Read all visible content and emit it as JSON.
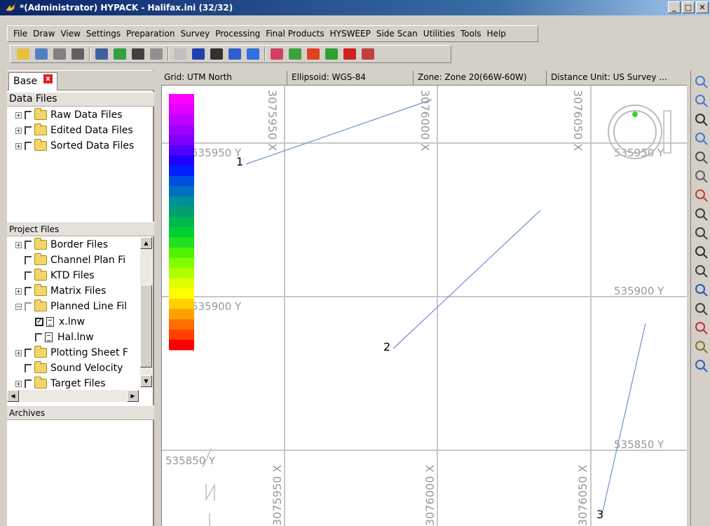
{
  "window": {
    "title": "*(Administrator) HYPACK - Halifax.ini (32/32)"
  },
  "menu": [
    "File",
    "Draw",
    "View",
    "Settings",
    "Preparation",
    "Survey",
    "Processing",
    "Final Products",
    "HYSWEEP",
    "Side Scan",
    "Utilities",
    "Tools",
    "Help"
  ],
  "toolbar_icons": [
    "open-folder-icon",
    "save-icon",
    "print-icon",
    "tools-icon",
    "planned-line-icon",
    "globe-icon",
    "satellite-icon",
    "boat-icon",
    "device-icon",
    "chart-icon",
    "book-icon",
    "zoom-date-icon",
    "wave-icon",
    "screen-icon",
    "window-icon",
    "terrain-icon",
    "map-icon",
    "color-map-icon",
    "grid-icon"
  ],
  "left_panel": {
    "base_tab": "Base",
    "data_files_header": "Data Files",
    "data_files": [
      "Raw Data Files",
      "Edited Data Files",
      "Sorted Data Files"
    ],
    "project_files_header": "Project Files",
    "project_files": [
      {
        "label": "Border Files",
        "expandable": true
      },
      {
        "label": "Channel Plan Fi",
        "expandable": false
      },
      {
        "label": "KTD Files",
        "expandable": false
      },
      {
        "label": "Matrix Files",
        "expandable": true
      },
      {
        "label": "Planned Line Fil",
        "expandable": true,
        "expanded": true
      },
      {
        "label": "x.lnw",
        "child": true,
        "checked": true
      },
      {
        "label": "Hal.lnw",
        "child": true,
        "checked": false
      },
      {
        "label": "Plotting Sheet F",
        "expandable": true
      },
      {
        "label": "Sound Velocity",
        "expandable": false
      },
      {
        "label": "Target Files",
        "expandable": true
      }
    ],
    "archives_header": "Archives"
  },
  "status": {
    "grid": "Grid: UTM North",
    "ellipsoid": "Ellipsoid: WGS-84",
    "zone": "Zone: Zone 20(66W-60W)",
    "distance": "Distance Unit: US Survey ..."
  },
  "map": {
    "grid_labels_x_top": [
      "3075950 X",
      "3076000 X",
      "3076050 X"
    ],
    "grid_labels_x_bottom": [
      "3075950 X",
      "3076000 X",
      "3076050 X"
    ],
    "grid_labels_y": [
      "535950 Y",
      "535900 Y",
      "535850 Y"
    ],
    "line_labels": [
      "1",
      "2",
      "3"
    ],
    "line_color": "#6d8fd6",
    "color_scale": [
      "#ff00ff",
      "#e000ff",
      "#c000ff",
      "#a000ff",
      "#8000ff",
      "#5000ff",
      "#2000ff",
      "#0020ff",
      "#0050e0",
      "#0070c0",
      "#00909a",
      "#00a070",
      "#00b850",
      "#00d030",
      "#20e020",
      "#50f000",
      "#80ff00",
      "#b0ff00",
      "#e0ff00",
      "#ffff00",
      "#ffd000",
      "#ffa000",
      "#ff7000",
      "#ff4000",
      "#ff0000"
    ]
  },
  "right_tools": [
    "zoom-in-icon",
    "zoom-window-icon",
    "zoom-extents-icon",
    "zoom-custom-icon",
    "query-icon",
    "select-arrow-icon",
    "color-select-icon",
    "pan-up-icon",
    "pan-down-icon",
    "north-icon",
    "crosshair-icon",
    "pen-icon",
    "undo-icon",
    "color-wheel-icon",
    "magic-icon",
    "date-zoom-icon"
  ]
}
